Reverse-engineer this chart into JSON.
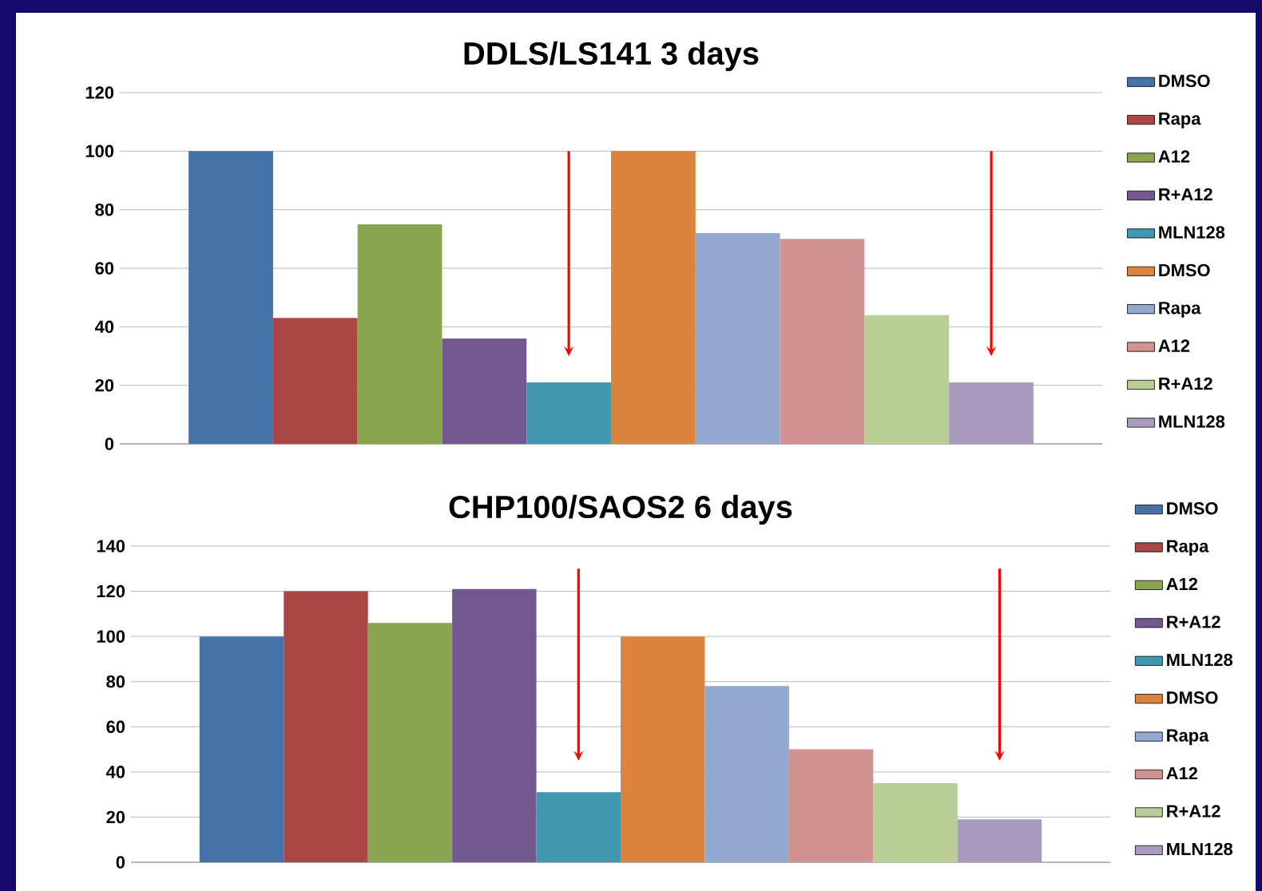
{
  "chart_data": [
    {
      "type": "bar",
      "title": "DDLS/LS141 3 days",
      "categories": [
        null
      ],
      "ylim": [
        0,
        120
      ],
      "yticks": [
        0,
        20,
        40,
        60,
        80,
        100,
        120
      ],
      "grid": "y",
      "legend": "right",
      "series": [
        {
          "name": "DMSO",
          "color": "#4572a7",
          "values": [
            100
          ]
        },
        {
          "name": "Rapa",
          "color": "#aa4643",
          "values": [
            43
          ]
        },
        {
          "name": "A12",
          "color": "#89a54e",
          "values": [
            75
          ]
        },
        {
          "name": "R+A12",
          "color": "#71588f",
          "values": [
            36
          ]
        },
        {
          "name": "MLN128",
          "color": "#4198af",
          "values": [
            21
          ]
        },
        {
          "name": "DMSO",
          "color": "#db843d",
          "values": [
            100
          ]
        },
        {
          "name": "Rapa",
          "color": "#93a9cf",
          "values": [
            72
          ]
        },
        {
          "name": "A12",
          "color": "#d19392",
          "values": [
            70
          ]
        },
        {
          "name": "R+A12",
          "color": "#b9cd96",
          "values": [
            44
          ]
        },
        {
          "name": "MLN128",
          "color": "#a99bbd",
          "values": [
            21
          ]
        }
      ]
    },
    {
      "type": "bar",
      "title": "CHP100/SAOS2 6 days",
      "categories": [
        null
      ],
      "ylim": [
        0,
        140
      ],
      "yticks": [
        0,
        20,
        40,
        60,
        80,
        100,
        120,
        140
      ],
      "grid": "y",
      "legend": "right",
      "series": [
        {
          "name": "DMSO",
          "color": "#4572a7",
          "values": [
            100
          ]
        },
        {
          "name": "Rapa",
          "color": "#aa4643",
          "values": [
            120
          ]
        },
        {
          "name": "A12",
          "color": "#89a54e",
          "values": [
            106
          ]
        },
        {
          "name": "R+A12",
          "color": "#71588f",
          "values": [
            121
          ]
        },
        {
          "name": "MLN128",
          "color": "#4198af",
          "values": [
            31
          ]
        },
        {
          "name": "DMSO",
          "color": "#db843d",
          "values": [
            100
          ]
        },
        {
          "name": "Rapa",
          "color": "#93a9cf",
          "values": [
            78
          ]
        },
        {
          "name": "A12",
          "color": "#d19392",
          "values": [
            50
          ]
        },
        {
          "name": "R+A12",
          "color": "#b9cd96",
          "values": [
            35
          ]
        },
        {
          "name": "MLN128",
          "color": "#a99bbd",
          "values": [
            19
          ]
        }
      ]
    }
  ]
}
